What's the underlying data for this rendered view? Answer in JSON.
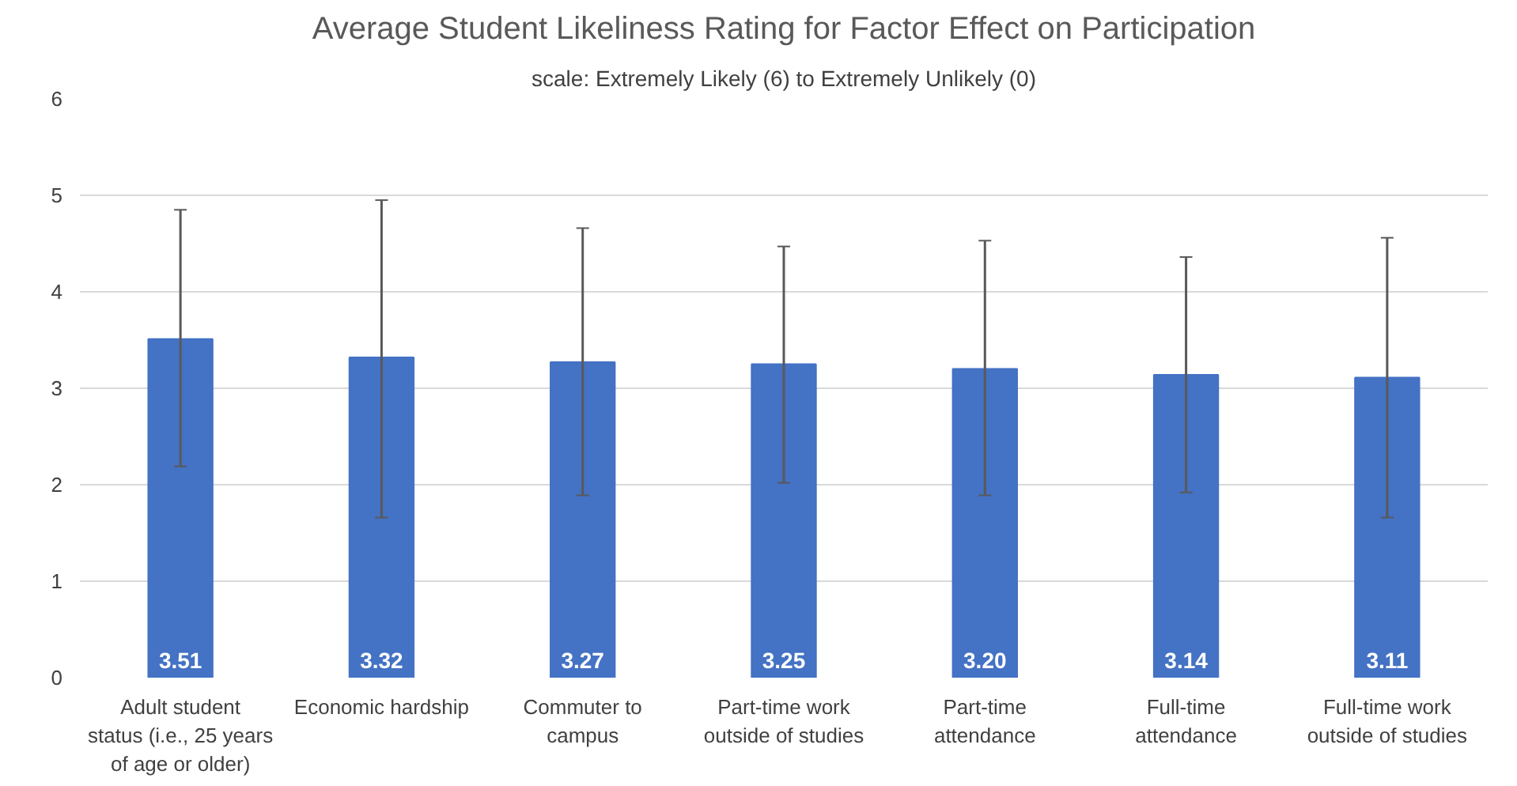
{
  "chart_data": {
    "type": "bar",
    "title": "Average Student Likeliness Rating for Factor Effect on Participation",
    "subtitle": "scale: Extremely Likely (6) to Extremely Unlikely (0)",
    "categories": [
      "Adult student\nstatus (i.e., 25 years\nof age or older)",
      "Economic hardship",
      "Commuter to\ncampus",
      "Part-time work\noutside of studies",
      "Part-time\nattendance",
      "Full-time\nattendance",
      "Full-time work\noutside of studies"
    ],
    "values": [
      3.51,
      3.32,
      3.27,
      3.25,
      3.2,
      3.14,
      3.11
    ],
    "errors": [
      [
        2.19,
        4.85
      ],
      [
        1.66,
        4.95
      ],
      [
        1.89,
        4.66
      ],
      [
        2.02,
        4.47
      ],
      [
        1.89,
        4.53
      ],
      [
        1.92,
        4.36
      ],
      [
        1.66,
        4.56
      ]
    ],
    "value_labels": [
      "3.51",
      "3.32",
      "3.27",
      "3.25",
      "3.20",
      "3.14",
      "3.11"
    ],
    "color": "#4472c4",
    "ylim": [
      0,
      6
    ],
    "yticks": [
      0,
      1,
      2,
      3,
      4,
      5,
      6
    ],
    "grid": "y"
  }
}
